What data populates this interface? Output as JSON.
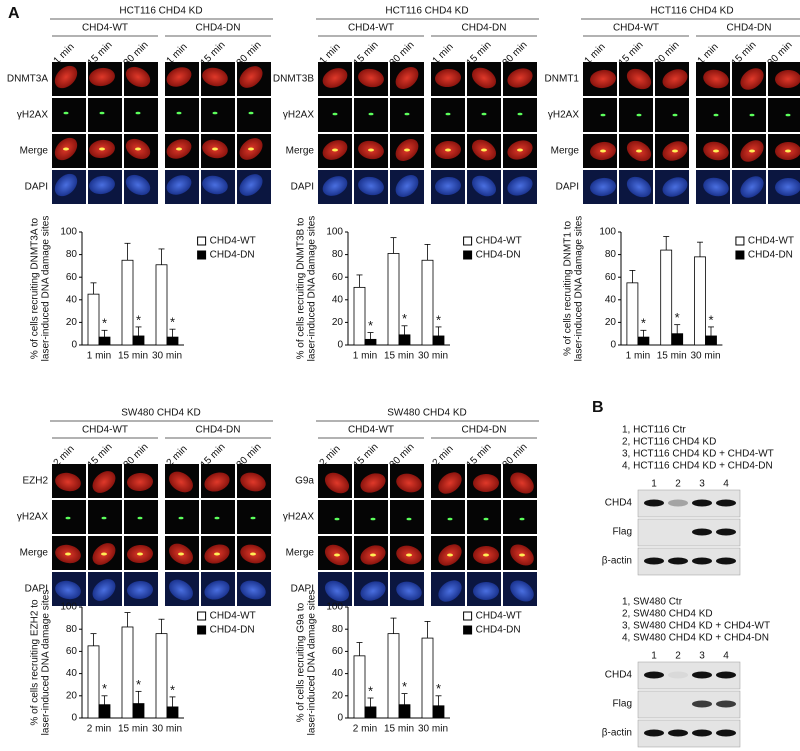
{
  "panel_labels": [
    "A",
    "B"
  ],
  "image_panels": [
    {
      "title": "HCT116 CHD4 KD",
      "groups": [
        "CHD4-WT",
        "CHD4-DN"
      ],
      "times": [
        "1 min",
        "15 min",
        "30 min",
        "1 min",
        "15 min",
        "30 min"
      ],
      "rows": [
        "DNMT3A",
        "γH2AX",
        "Merge",
        "DAPI"
      ]
    },
    {
      "title": "HCT116 CHD4 KD",
      "groups": [
        "CHD4-WT",
        "CHD4-DN"
      ],
      "times": [
        "1 min",
        "15 min",
        "30 min",
        "1 min",
        "15 min",
        "30 min"
      ],
      "rows": [
        "DNMT3B",
        "γH2AX",
        "Merge",
        "DAPI"
      ]
    },
    {
      "title": "HCT116 CHD4 KD",
      "groups": [
        "CHD4-WT",
        "CHD4-DN"
      ],
      "times": [
        "1 min",
        "15 min",
        "30 min",
        "1 min",
        "15 min",
        "30 min"
      ],
      "rows": [
        "DNMT1",
        "γH2AX",
        "Merge",
        "DAPI"
      ]
    },
    {
      "title": "SW480 CHD4 KD",
      "groups": [
        "CHD4-WT",
        "CHD4-DN"
      ],
      "times": [
        "2 min",
        "15 min",
        "30 min",
        "2 min",
        "15 min",
        "30 min"
      ],
      "rows": [
        "EZH2",
        "γH2AX",
        "Merge",
        "DAPI"
      ]
    },
    {
      "title": "SW480 CHD4 KD",
      "groups": [
        "CHD4-WT",
        "CHD4-DN"
      ],
      "times": [
        "2 min",
        "15 min",
        "30 min",
        "2 min",
        "15 min",
        "30 min"
      ],
      "rows": [
        "G9a",
        "γH2AX",
        "Merge",
        "DAPI"
      ]
    }
  ],
  "chart_data": [
    {
      "type": "bar",
      "y_label": [
        "% of cells recruiting DNMT3A to",
        "laser-induced DNA damage sites"
      ],
      "categories": [
        "1 min",
        "15 min",
        "30 min"
      ],
      "series": [
        {
          "name": "CHD4-WT",
          "color": "#ffffff",
          "values": [
            45,
            75,
            71
          ],
          "errors": [
            10,
            15,
            14
          ]
        },
        {
          "name": "CHD4-DN",
          "color": "#000000",
          "values": [
            7,
            8,
            7
          ],
          "errors": [
            6,
            8,
            7
          ],
          "markers": [
            "*",
            "*",
            "*"
          ]
        }
      ],
      "ylim": [
        0,
        100
      ],
      "yticks": [
        0,
        20,
        40,
        60,
        80,
        100
      ]
    },
    {
      "type": "bar",
      "y_label": [
        "% of cells recruiting DNMT3B to",
        "laser-induced DNA damage sites"
      ],
      "categories": [
        "1 min",
        "15 min",
        "30 min"
      ],
      "series": [
        {
          "name": "CHD4-WT",
          "color": "#ffffff",
          "values": [
            51,
            81,
            75
          ],
          "errors": [
            11,
            14,
            14
          ]
        },
        {
          "name": "CHD4-DN",
          "color": "#000000",
          "values": [
            5,
            9,
            8
          ],
          "errors": [
            6,
            8,
            8
          ],
          "markers": [
            "*",
            "*",
            "*"
          ]
        }
      ],
      "ylim": [
        0,
        100
      ],
      "yticks": [
        0,
        20,
        40,
        60,
        80,
        100
      ]
    },
    {
      "type": "bar",
      "y_label": [
        "% of cells recruiting DNMT1 to",
        "laser-induced DNA damage sites"
      ],
      "categories": [
        "1 min",
        "15 min",
        "30 min"
      ],
      "series": [
        {
          "name": "CHD4-WT",
          "color": "#ffffff",
          "values": [
            55,
            84,
            78
          ],
          "errors": [
            11,
            12,
            13
          ]
        },
        {
          "name": "CHD4-DN",
          "color": "#000000",
          "values": [
            7,
            10,
            8
          ],
          "errors": [
            6,
            8,
            8
          ],
          "markers": [
            "*",
            "*",
            "*"
          ]
        }
      ],
      "ylim": [
        0,
        100
      ],
      "yticks": [
        0,
        20,
        40,
        60,
        80,
        100
      ]
    },
    {
      "type": "bar",
      "y_label": [
        "% of cells recruiting EZH2 to",
        "laser-induced DNA damage sites"
      ],
      "categories": [
        "2 min",
        "15 min",
        "30 min"
      ],
      "series": [
        {
          "name": "CHD4-WT",
          "color": "#ffffff",
          "values": [
            65,
            82,
            76
          ],
          "errors": [
            11,
            13,
            13
          ]
        },
        {
          "name": "CHD4-DN",
          "color": "#000000",
          "values": [
            12,
            13,
            10
          ],
          "errors": [
            8,
            11,
            9
          ],
          "markers": [
            "*",
            "*",
            "*"
          ]
        }
      ],
      "ylim": [
        0,
        100
      ],
      "yticks": [
        0,
        20,
        40,
        60,
        80,
        100
      ]
    },
    {
      "type": "bar",
      "y_label": [
        "% of cells recruiting G9a to",
        "laser-induced DNA damage sites"
      ],
      "categories": [
        "2 min",
        "15 min",
        "30 min"
      ],
      "series": [
        {
          "name": "CHD4-WT",
          "color": "#ffffff",
          "values": [
            56,
            76,
            72
          ],
          "errors": [
            12,
            14,
            15
          ]
        },
        {
          "name": "CHD4-DN",
          "color": "#000000",
          "values": [
            10,
            12,
            11
          ],
          "errors": [
            8,
            10,
            9
          ],
          "markers": [
            "*",
            "*",
            "*"
          ]
        }
      ],
      "ylim": [
        0,
        100
      ],
      "yticks": [
        0,
        20,
        40,
        60,
        80,
        100
      ]
    }
  ],
  "blots": [
    {
      "legend": [
        "1, HCT116 Ctr",
        "2, HCT116 CHD4 KD",
        "3, HCT116 CHD4 KD + CHD4-WT",
        "4, HCT116 CHD4 KD + CHD4-DN"
      ],
      "lanes": [
        "1",
        "2",
        "3",
        "4"
      ],
      "rows": [
        "CHD4",
        "Flag",
        "β-actin"
      ]
    },
    {
      "legend": [
        "1, SW480 Ctr",
        "2, SW480 CHD4 KD",
        "3, SW480 CHD4 KD + CHD4-WT",
        "4, SW480 CHD4 KD + CHD4-DN"
      ],
      "lanes": [
        "1",
        "2",
        "3",
        "4"
      ],
      "rows": [
        "CHD4",
        "Flag",
        "β-actin"
      ]
    }
  ]
}
